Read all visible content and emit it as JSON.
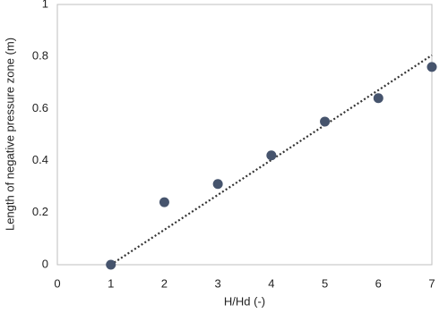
{
  "chart_data": {
    "type": "scatter",
    "x_label": "H/Hd (-)",
    "y_label": "Length of negative pressure zone (m)",
    "x": [
      1,
      2,
      3,
      4,
      5,
      6,
      7
    ],
    "values": [
      0,
      0.24,
      0.31,
      0.42,
      0.55,
      0.64,
      0.76
    ],
    "color": "#46546d",
    "trendline": {
      "x": [
        1,
        7
      ],
      "values": [
        0,
        0.805
      ],
      "color": "#333333",
      "style": "dotted"
    },
    "xlim": [
      0,
      7
    ],
    "xticks": [
      0,
      1,
      2,
      3,
      4,
      5,
      6,
      7
    ],
    "ylim": [
      0,
      1
    ],
    "yticks": [
      0,
      0.2,
      0.4,
      0.6,
      0.8,
      1
    ],
    "grid": false
  }
}
